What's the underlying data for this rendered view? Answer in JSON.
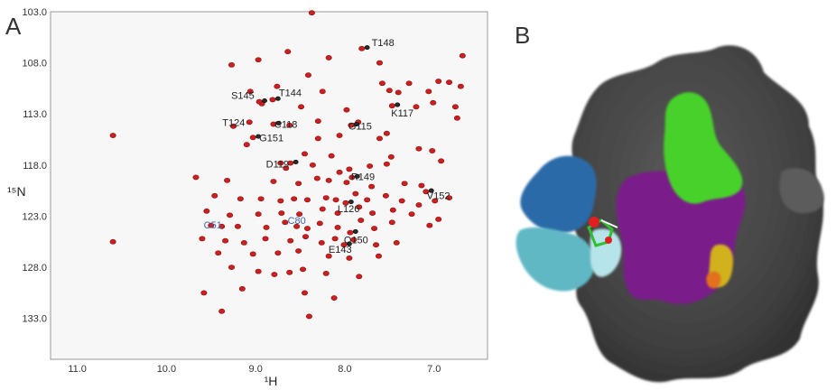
{
  "panels": {
    "a_label": "A",
    "b_label": "B"
  },
  "chart_data": {
    "type": "scatter",
    "xlabel": "¹H",
    "ylabel": "¹⁵N",
    "xlim": [
      11.3,
      6.4
    ],
    "ylim": [
      103.0,
      137.0
    ],
    "x_ticks": [
      "11.0",
      "10.0",
      "9.0",
      "8.0",
      "7.0"
    ],
    "x_tick_values": [
      11.0,
      10.0,
      9.0,
      8.0,
      7.0
    ],
    "y_ticks": [
      "103.0",
      "108.0",
      "113.0",
      "118.0",
      "123.0",
      "128.0",
      "133.0"
    ],
    "y_tick_values": [
      103.0,
      108.0,
      113.0,
      118.0,
      123.0,
      128.0,
      133.0
    ],
    "colors": {
      "peaks": "#cc1f1f",
      "reference": "#2b2b2b",
      "labels_blue": "#4466aa"
    },
    "labeled_peaks": [
      {
        "label": "T148",
        "x": 7.78,
        "y": 106.6,
        "color": "dark"
      },
      {
        "label": "S145",
        "x": 8.93,
        "y": 111.8,
        "color": "dark"
      },
      {
        "label": "T144",
        "x": 8.78,
        "y": 111.6,
        "color": "dark"
      },
      {
        "label": "T124",
        "x": 9.07,
        "y": 113.8,
        "color": "red"
      },
      {
        "label": "C118",
        "x": 8.77,
        "y": 114.0,
        "color": "dark"
      },
      {
        "label": "G115",
        "x": 7.9,
        "y": 114.1,
        "color": "dark"
      },
      {
        "label": "K117",
        "x": 7.44,
        "y": 112.2,
        "color": "dark"
      },
      {
        "label": "G151",
        "x": 9.0,
        "y": 115.3,
        "color": "dark"
      },
      {
        "label": "D119",
        "x": 8.58,
        "y": 117.8,
        "color": "dark"
      },
      {
        "label": "R149",
        "x": 7.89,
        "y": 119.2,
        "color": "dark"
      },
      {
        "label": "V152",
        "x": 7.06,
        "y": 120.6,
        "color": "dark"
      },
      {
        "label": "L126",
        "x": 7.96,
        "y": 121.7,
        "color": "dark"
      },
      {
        "label": "C51",
        "x": 9.38,
        "y": 124.0,
        "color": "blue"
      },
      {
        "label": "C80",
        "x": 8.54,
        "y": 124.0,
        "color": "blue"
      },
      {
        "label": "Q150",
        "x": 7.91,
        "y": 124.6,
        "color": "dark"
      },
      {
        "label": "E143",
        "x": 7.98,
        "y": 125.8,
        "color": "dark"
      }
    ],
    "unlabeled_peaks": [
      [
        8.37,
        103.1
      ],
      [
        8.64,
        106.9
      ],
      [
        8.18,
        107.5
      ],
      [
        7.61,
        108.0
      ],
      [
        6.68,
        107.3
      ],
      [
        8.97,
        107.7
      ],
      [
        9.27,
        108.2
      ],
      [
        8.41,
        109.2
      ],
      [
        7.58,
        110.0
      ],
      [
        7.28,
        110.0
      ],
      [
        7.06,
        110.8
      ],
      [
        6.95,
        109.8
      ],
      [
        6.83,
        109.9
      ],
      [
        6.7,
        110.3
      ],
      [
        7.5,
        110.7
      ],
      [
        7.4,
        110.9
      ],
      [
        8.25,
        110.8
      ],
      [
        8.76,
        110.3
      ],
      [
        9.06,
        110.8
      ],
      [
        8.93,
        112.0
      ],
      [
        8.49,
        112.3
      ],
      [
        7.98,
        112.6
      ],
      [
        7.2,
        112.3
      ],
      [
        7.01,
        111.9
      ],
      [
        6.76,
        112.3
      ],
      [
        6.74,
        113.4
      ],
      [
        10.6,
        115.1
      ],
      [
        9.25,
        114.2
      ],
      [
        8.62,
        114.1
      ],
      [
        8.3,
        113.7
      ],
      [
        7.85,
        113.8
      ],
      [
        7.53,
        114.9
      ],
      [
        7.61,
        115.4
      ],
      [
        8.3,
        115.4
      ],
      [
        8.06,
        115.1
      ],
      [
        9.1,
        116.0
      ],
      [
        8.45,
        116.9
      ],
      [
        7.48,
        117.2
      ],
      [
        7.17,
        116.4
      ],
      [
        7.02,
        116.6
      ],
      [
        6.92,
        117.6
      ],
      [
        8.15,
        117.1
      ],
      [
        8.72,
        117.8
      ],
      [
        8.66,
        118.3
      ],
      [
        8.36,
        118.0
      ],
      [
        8.06,
        118.7
      ],
      [
        7.95,
        118.4
      ],
      [
        7.72,
        118.1
      ],
      [
        7.53,
        117.9
      ],
      [
        9.67,
        119.2
      ],
      [
        9.32,
        119.5
      ],
      [
        8.8,
        119.6
      ],
      [
        8.52,
        119.8
      ],
      [
        8.31,
        119.3
      ],
      [
        8.18,
        119.5
      ],
      [
        7.98,
        119.7
      ],
      [
        7.7,
        120.1
      ],
      [
        7.33,
        119.8
      ],
      [
        7.14,
        120.0
      ],
      [
        9.46,
        121.0
      ],
      [
        9.17,
        121.3
      ],
      [
        8.94,
        121.3
      ],
      [
        8.72,
        121.5
      ],
      [
        8.57,
        121.3
      ],
      [
        8.42,
        121.4
      ],
      [
        8.21,
        121.2
      ],
      [
        8.1,
        121.4
      ],
      [
        7.88,
        120.8
      ],
      [
        7.75,
        121.4
      ],
      [
        7.54,
        121.0
      ],
      [
        7.36,
        121.5
      ],
      [
        7.17,
        121.9
      ],
      [
        6.99,
        121.5
      ],
      [
        6.83,
        121.2
      ],
      [
        9.55,
        122.5
      ],
      [
        9.29,
        122.9
      ],
      [
        8.97,
        122.8
      ],
      [
        8.71,
        122.7
      ],
      [
        8.51,
        122.8
      ],
      [
        8.25,
        122.3
      ],
      [
        8.08,
        122.7
      ],
      [
        7.84,
        122.1
      ],
      [
        7.69,
        122.7
      ],
      [
        7.46,
        122.4
      ],
      [
        7.25,
        122.8
      ],
      [
        9.5,
        123.9
      ],
      [
        9.2,
        124.0
      ],
      [
        8.88,
        124.1
      ],
      [
        8.67,
        123.6
      ],
      [
        8.42,
        124.2
      ],
      [
        8.28,
        123.7
      ],
      [
        8.08,
        124.1
      ],
      [
        7.82,
        123.4
      ],
      [
        7.67,
        124.2
      ],
      [
        7.47,
        123.6
      ],
      [
        7.05,
        123.9
      ],
      [
        6.95,
        123.3
      ],
      [
        10.6,
        125.5
      ],
      [
        9.6,
        125.2
      ],
      [
        9.34,
        125.4
      ],
      [
        9.13,
        125.6
      ],
      [
        8.89,
        125.2
      ],
      [
        8.61,
        125.4
      ],
      [
        8.44,
        125.0
      ],
      [
        8.26,
        125.6
      ],
      [
        8.11,
        125.2
      ],
      [
        7.9,
        125.3
      ],
      [
        7.65,
        125.8
      ],
      [
        7.42,
        125.6
      ],
      [
        9.42,
        126.6
      ],
      [
        9.03,
        126.7
      ],
      [
        8.75,
        126.6
      ],
      [
        8.52,
        126.4
      ],
      [
        8.18,
        126.9
      ],
      [
        7.95,
        127.1
      ],
      [
        7.62,
        126.9
      ],
      [
        9.27,
        128.0
      ],
      [
        8.97,
        128.4
      ],
      [
        8.79,
        128.7
      ],
      [
        8.62,
        128.5
      ],
      [
        8.47,
        128.2
      ],
      [
        8.21,
        128.6
      ],
      [
        7.84,
        128.9
      ],
      [
        9.58,
        130.5
      ],
      [
        9.15,
        130.1
      ],
      [
        8.45,
        130.5
      ],
      [
        8.12,
        131.0
      ],
      [
        9.38,
        132.3
      ],
      [
        8.4,
        132.8
      ]
    ]
  }
}
